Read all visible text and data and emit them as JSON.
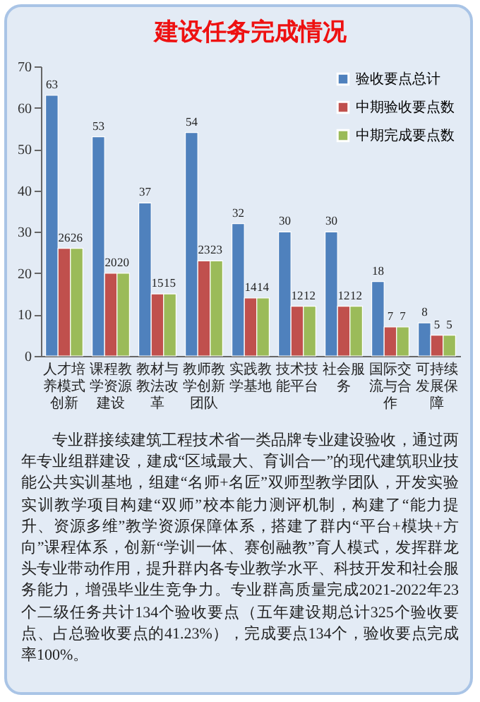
{
  "chart_data": {
    "type": "bar",
    "title": "建设任务完成情况",
    "categories": [
      "人才培养模式创新",
      "课程教学资源建设",
      "教材与教法改革",
      "教师教学创新团队",
      "实践教学基地",
      "技术技能平台",
      "社会服务",
      "国际交流与合作",
      "可持续发展保障"
    ],
    "series": [
      {
        "name": "验收要点总计",
        "color": "#4f81bd",
        "values": [
          63,
          53,
          37,
          54,
          32,
          30,
          30,
          18,
          8
        ]
      },
      {
        "name": "中期验收要点数",
        "color": "#c0504d",
        "values": [
          26,
          20,
          15,
          23,
          14,
          12,
          12,
          7,
          5
        ]
      },
      {
        "name": "中期完成要点数",
        "color": "#9bbb59",
        "values": [
          26,
          20,
          15,
          23,
          14,
          12,
          12,
          7,
          5
        ]
      }
    ],
    "ylim": [
      0,
      70
    ],
    "yticks": [
      0,
      10,
      20,
      30,
      40,
      50,
      60,
      70
    ],
    "grid": false,
    "legend": "top right",
    "data_labels": true,
    "annotations": [
      "专业群接续建筑工程技术省一类品牌专业建设验收，通过两年专业组群建设，建成“区域最大、育训合一”的现代建筑职业技能公共实训基地，组建“名师+名匠”双师型教学团队，开发实验实训教学项目构建“双师”校本能力测评机制，构建了“能力提升、资源多维”教学资源保障体系，搭建了群内“平台+模块+方向”课程体系，创新“学训一体、赛创融教”育人模式，发挥群龙头专业带动作用，提升群内各专业教学水平、科技开发和社会服务能力，增强毕业生竞争力。专业群高质量完成2021-2022年23个二级任务共计134个验收要点（五年建设期总计325个验收要点、占总验收要点的41.23%），完成要点134个，验收要点完成率100%。"
    ]
  }
}
